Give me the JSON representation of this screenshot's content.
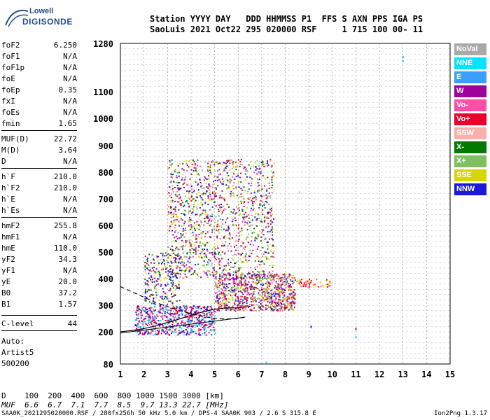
{
  "logo": {
    "top": "Lowell",
    "bottom": "DIGISONDE"
  },
  "header": {
    "line1": "Station YYYY DAY   DDD HHMMSS P1  FFS S AXN PPS IGA PS",
    "line2": "SaoLuis 2021 Oct22 295 020000 RSF     1 715 100 00- 11"
  },
  "params": [
    {
      "k": "foF2",
      "v": "6.250"
    },
    {
      "k": "foF1",
      "v": "N/A"
    },
    {
      "k": "foF1p",
      "v": "N/A"
    },
    {
      "k": "foE",
      "v": "N/A"
    },
    {
      "k": "foEp",
      "v": "0.35"
    },
    {
      "k": "fxI",
      "v": "N/A"
    },
    {
      "k": "foEs",
      "v": "N/A"
    },
    {
      "k": "fmin",
      "v": "1.65"
    },
    {
      "k": "MUF(D)",
      "v": "22.72"
    },
    {
      "k": "M(D)",
      "v": "3.64"
    },
    {
      "k": "D",
      "v": "N/A"
    },
    {
      "k": "h`F",
      "v": "210.0"
    },
    {
      "k": "h`F2",
      "v": "210.0"
    },
    {
      "k": "h`E",
      "v": "N/A"
    },
    {
      "k": "h`Es",
      "v": "N/A"
    },
    {
      "k": "hmF2",
      "v": "255.8"
    },
    {
      "k": "hmF1",
      "v": "N/A"
    },
    {
      "k": "hmE",
      "v": "110.0"
    },
    {
      "k": "yF2",
      "v": "34.3"
    },
    {
      "k": "yF1",
      "v": "N/A"
    },
    {
      "k": "yE",
      "v": "20.0"
    },
    {
      "k": "B0",
      "v": "37.2"
    },
    {
      "k": "B1",
      "v": "1.57"
    },
    {
      "k": "C-level",
      "v": "44"
    }
  ],
  "auto": [
    "Auto:",
    "Artist5",
    "500200"
  ],
  "legend": [
    {
      "label": "NoVal",
      "color": "#a9a9a9"
    },
    {
      "label": "NNE",
      "color": "#00e5ff"
    },
    {
      "label": "E",
      "color": "#3aa0ff"
    },
    {
      "label": "W",
      "color": "#a0009e"
    },
    {
      "label": "Vo-",
      "color": "#ff4fa6"
    },
    {
      "label": "Vo+",
      "color": "#e8002a"
    },
    {
      "label": "SSW",
      "color": "#f7b1aa"
    },
    {
      "label": "X-",
      "color": "#007a00"
    },
    {
      "label": "X+",
      "color": "#7fbf5f"
    },
    {
      "label": "SSE",
      "color": "#d6d600"
    },
    {
      "label": "NNW",
      "color": "#1a1adb"
    }
  ],
  "dmuf": {
    "d_line": "D    100  200  400  600  800 1000 1500 3000 [km]",
    "muf_line": "MUF  6.6  6.7  7.1  7.7  8.5  9.7 13.3 22.7 [MHz]"
  },
  "footer": "SAA0K_2021295020000.RSF / 280fx256h 50 kHz 5.0 km / DPS-4 SAA0K 903 / 2.6 S 315.8 E",
  "version": "Ion2Png 1.3.17",
  "chart_data": {
    "type": "scatter",
    "title": "",
    "xlabel": "",
    "ylabel": "",
    "xlim": [
      1,
      15
    ],
    "ylim": [
      80,
      1280
    ],
    "xticks": [
      1,
      2,
      3,
      4,
      5,
      6,
      7,
      8,
      9,
      10,
      11,
      12,
      13,
      14,
      15
    ],
    "yticks": [
      80,
      200,
      300,
      400,
      500,
      600,
      700,
      800,
      900,
      1000,
      1100,
      1280
    ],
    "grid": true,
    "legend_position": "right",
    "clusters": [
      {
        "name": "F-trace main",
        "x": [
          5.0,
          8.4
        ],
        "y": [
          280,
          420
        ],
        "density": 0.9,
        "colors": [
          "#e8002a",
          "#ff4fa6",
          "#d6d600",
          "#7fbf5f",
          "#a0009e",
          "#1a1adb"
        ]
      },
      {
        "name": "F-trace lower",
        "x": [
          1.6,
          5.0
        ],
        "y": [
          190,
          300
        ],
        "density": 0.8,
        "colors": [
          "#a0009e",
          "#1a1adb",
          "#e8002a",
          "#ff4fa6",
          "#00e5ff"
        ]
      },
      {
        "name": "spread-F upper",
        "x": [
          3.0,
          7.5
        ],
        "y": [
          400,
          850
        ],
        "density": 0.3,
        "colors": [
          "#a0009e",
          "#1a1adb",
          "#e8002a",
          "#ff4fa6",
          "#007a00",
          "#7fbf5f",
          "#d6d600"
        ]
      },
      {
        "name": "tail",
        "x": [
          8.4,
          9.9
        ],
        "y": [
          370,
          400
        ],
        "density": 0.6,
        "colors": [
          "#d6d600",
          "#e8002a",
          "#ff4fa6"
        ]
      },
      {
        "name": "mid-left",
        "x": [
          2.0,
          3.5
        ],
        "y": [
          300,
          500
        ],
        "density": 0.35,
        "colors": [
          "#007a00",
          "#d6d600",
          "#a0009e",
          "#1a1adb"
        ]
      }
    ],
    "isolated_points": [
      {
        "x": 13.0,
        "y": 1230,
        "color": "#3aa0ff"
      },
      {
        "x": 13.0,
        "y": 1215,
        "color": "#3aa0ff"
      },
      {
        "x": 8.6,
        "y": 725,
        "color": "#f7b1aa"
      },
      {
        "x": 11.0,
        "y": 212,
        "color": "#a0009e"
      },
      {
        "x": 11.0,
        "y": 182,
        "color": "#00e5ff"
      },
      {
        "x": 9.1,
        "y": 220,
        "color": "#1a1adb"
      },
      {
        "x": 7.2,
        "y": 86,
        "color": "#00e5ff"
      }
    ],
    "profile_solid": [
      [
        1.0,
        200
      ],
      [
        1.5,
        205
      ],
      [
        2.0,
        212
      ],
      [
        2.5,
        222
      ],
      [
        3.0,
        235
      ],
      [
        3.5,
        248
      ],
      [
        4.0,
        262
      ],
      [
        4.5,
        275
      ],
      [
        5.0,
        285
      ],
      [
        5.5,
        290
      ],
      [
        6.0,
        290
      ],
      [
        6.25,
        293
      ]
    ],
    "profile_dashed": [
      [
        1.0,
        370
      ],
      [
        1.5,
        350
      ],
      [
        2.0,
        330
      ],
      [
        2.5,
        310
      ],
      [
        3.0,
        295
      ],
      [
        3.5,
        280
      ],
      [
        4.0,
        268
      ],
      [
        4.5,
        258
      ],
      [
        5.0,
        250
      ],
      [
        5.5,
        248
      ],
      [
        6.0,
        250
      ],
      [
        6.25,
        255
      ]
    ],
    "edge_line": [
      [
        1.0,
        195
      ],
      [
        6.3,
        255
      ]
    ]
  }
}
